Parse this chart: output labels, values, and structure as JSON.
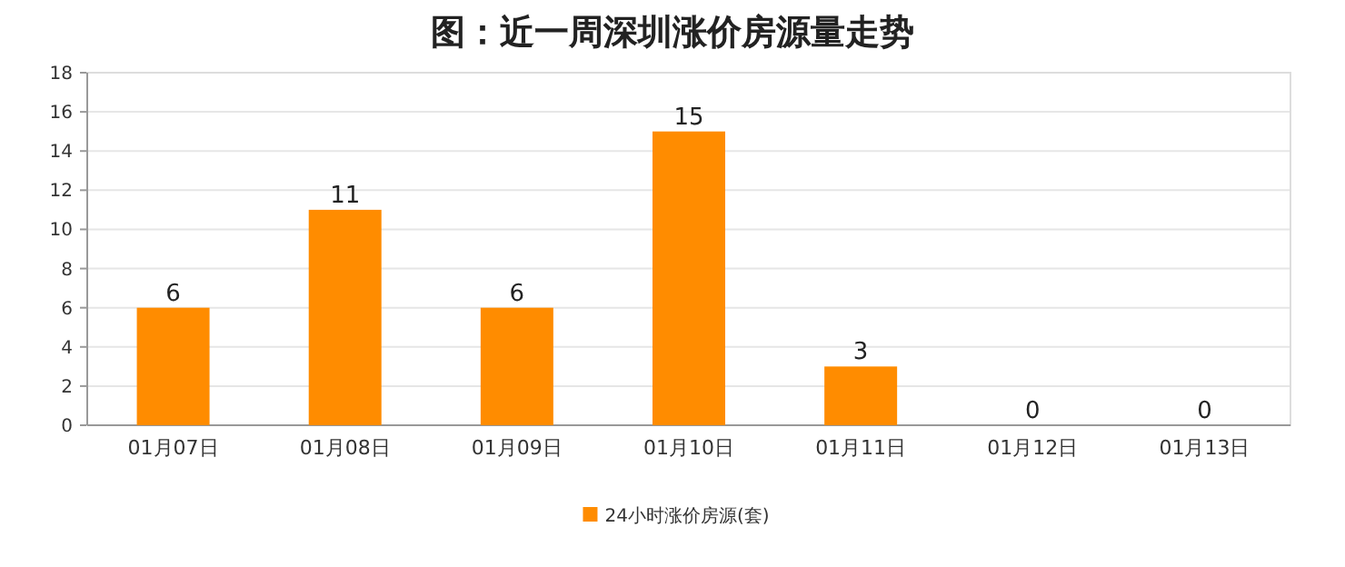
{
  "chart_data": {
    "type": "bar",
    "title": "图：近一周深圳涨价房源量走势",
    "categories": [
      "01月07日",
      "01月08日",
      "01月09日",
      "01月10日",
      "01月11日",
      "01月12日",
      "01月13日"
    ],
    "series": [
      {
        "name": "24小时涨价房源(套)",
        "color": "#ff8c00",
        "values": [
          6,
          11,
          6,
          15,
          3,
          0,
          0
        ]
      }
    ],
    "ylim": [
      0,
      18
    ],
    "yticks": [
      0,
      2,
      4,
      6,
      8,
      10,
      12,
      14,
      16,
      18
    ],
    "grid": "y",
    "legend": "bottom",
    "data_labels": true
  }
}
